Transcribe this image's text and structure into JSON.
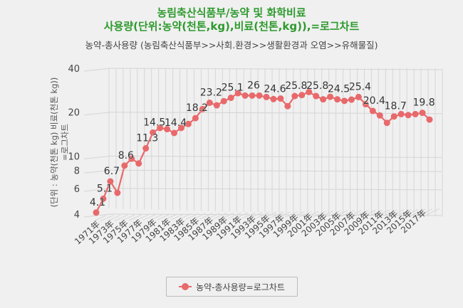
{
  "chart_data": {
    "type": "line",
    "title_line1": "농림축산식품부/농약 및 화학비료",
    "title_line2": "사용량(단위:농약(천톤,kg),비료(천톤,kg)),=로그차트",
    "subtitle": "농약-총사용량 (농림축산식품부>>사회.환경>>생활환경과 오염>>유해물질)",
    "ylabel_line1": "(단위 : 농약(천톤 kg) 비료(천톤 kg))",
    "ylabel_line2": "=로그차트",
    "yscale": "log",
    "ylim": [
      4,
      40
    ],
    "yticks": [
      "4",
      "6",
      "8",
      "10",
      "20",
      "40"
    ],
    "grid": true,
    "legend_position": "bottom",
    "color": "#e8696b",
    "xticks": [
      "1971年",
      "1973年",
      "1975年",
      "1977年",
      "1979年",
      "1981年",
      "1983年",
      "1985年",
      "1987年",
      "1989年",
      "1991年",
      "1993年",
      "1995年",
      "1997年",
      "1999年",
      "2001年",
      "2003年",
      "2005年",
      "2007年",
      "2009年",
      "2011年",
      "2013年",
      "2015年",
      "2017年"
    ],
    "x": [
      1971,
      1972,
      1973,
      1974,
      1975,
      1976,
      1977,
      1978,
      1979,
      1980,
      1981,
      1982,
      1983,
      1984,
      1985,
      1986,
      1987,
      1988,
      1989,
      1990,
      1991,
      1992,
      1993,
      1994,
      1995,
      1996,
      1997,
      1998,
      1999,
      2000,
      2001,
      2002,
      2003,
      2004,
      2005,
      2006,
      2007,
      2008,
      2009,
      2010,
      2011,
      2012,
      2013,
      2014,
      2015,
      2016,
      2017,
      2018
    ],
    "series": [
      {
        "name": "농약-총사용량=로그차트",
        "values": [
          4.1,
          5.1,
          6.7,
          5.6,
          8.6,
          9.6,
          8.9,
          11.3,
          14.5,
          15.6,
          15.3,
          14.4,
          15.6,
          16.6,
          18.2,
          21.0,
          23.2,
          22.3,
          23.8,
          25.1,
          27.0,
          26.0,
          26.0,
          26.0,
          25.4,
          24.6,
          24.8,
          22.0,
          25.8,
          26.2,
          27.5,
          25.8,
          24.5,
          25.5,
          24.5,
          23.9,
          24.4,
          25.4,
          22.7,
          20.4,
          19.0,
          16.9,
          18.7,
          19.4,
          19.1,
          19.4,
          19.8,
          17.8
        ],
        "labeled_years": [
          1971,
          1972,
          1973,
          1975,
          1978,
          1979,
          1982,
          1985,
          1987,
          1990,
          1993,
          1996,
          1999,
          2002,
          2005,
          2008,
          2010,
          2013,
          2017
        ]
      }
    ]
  }
}
